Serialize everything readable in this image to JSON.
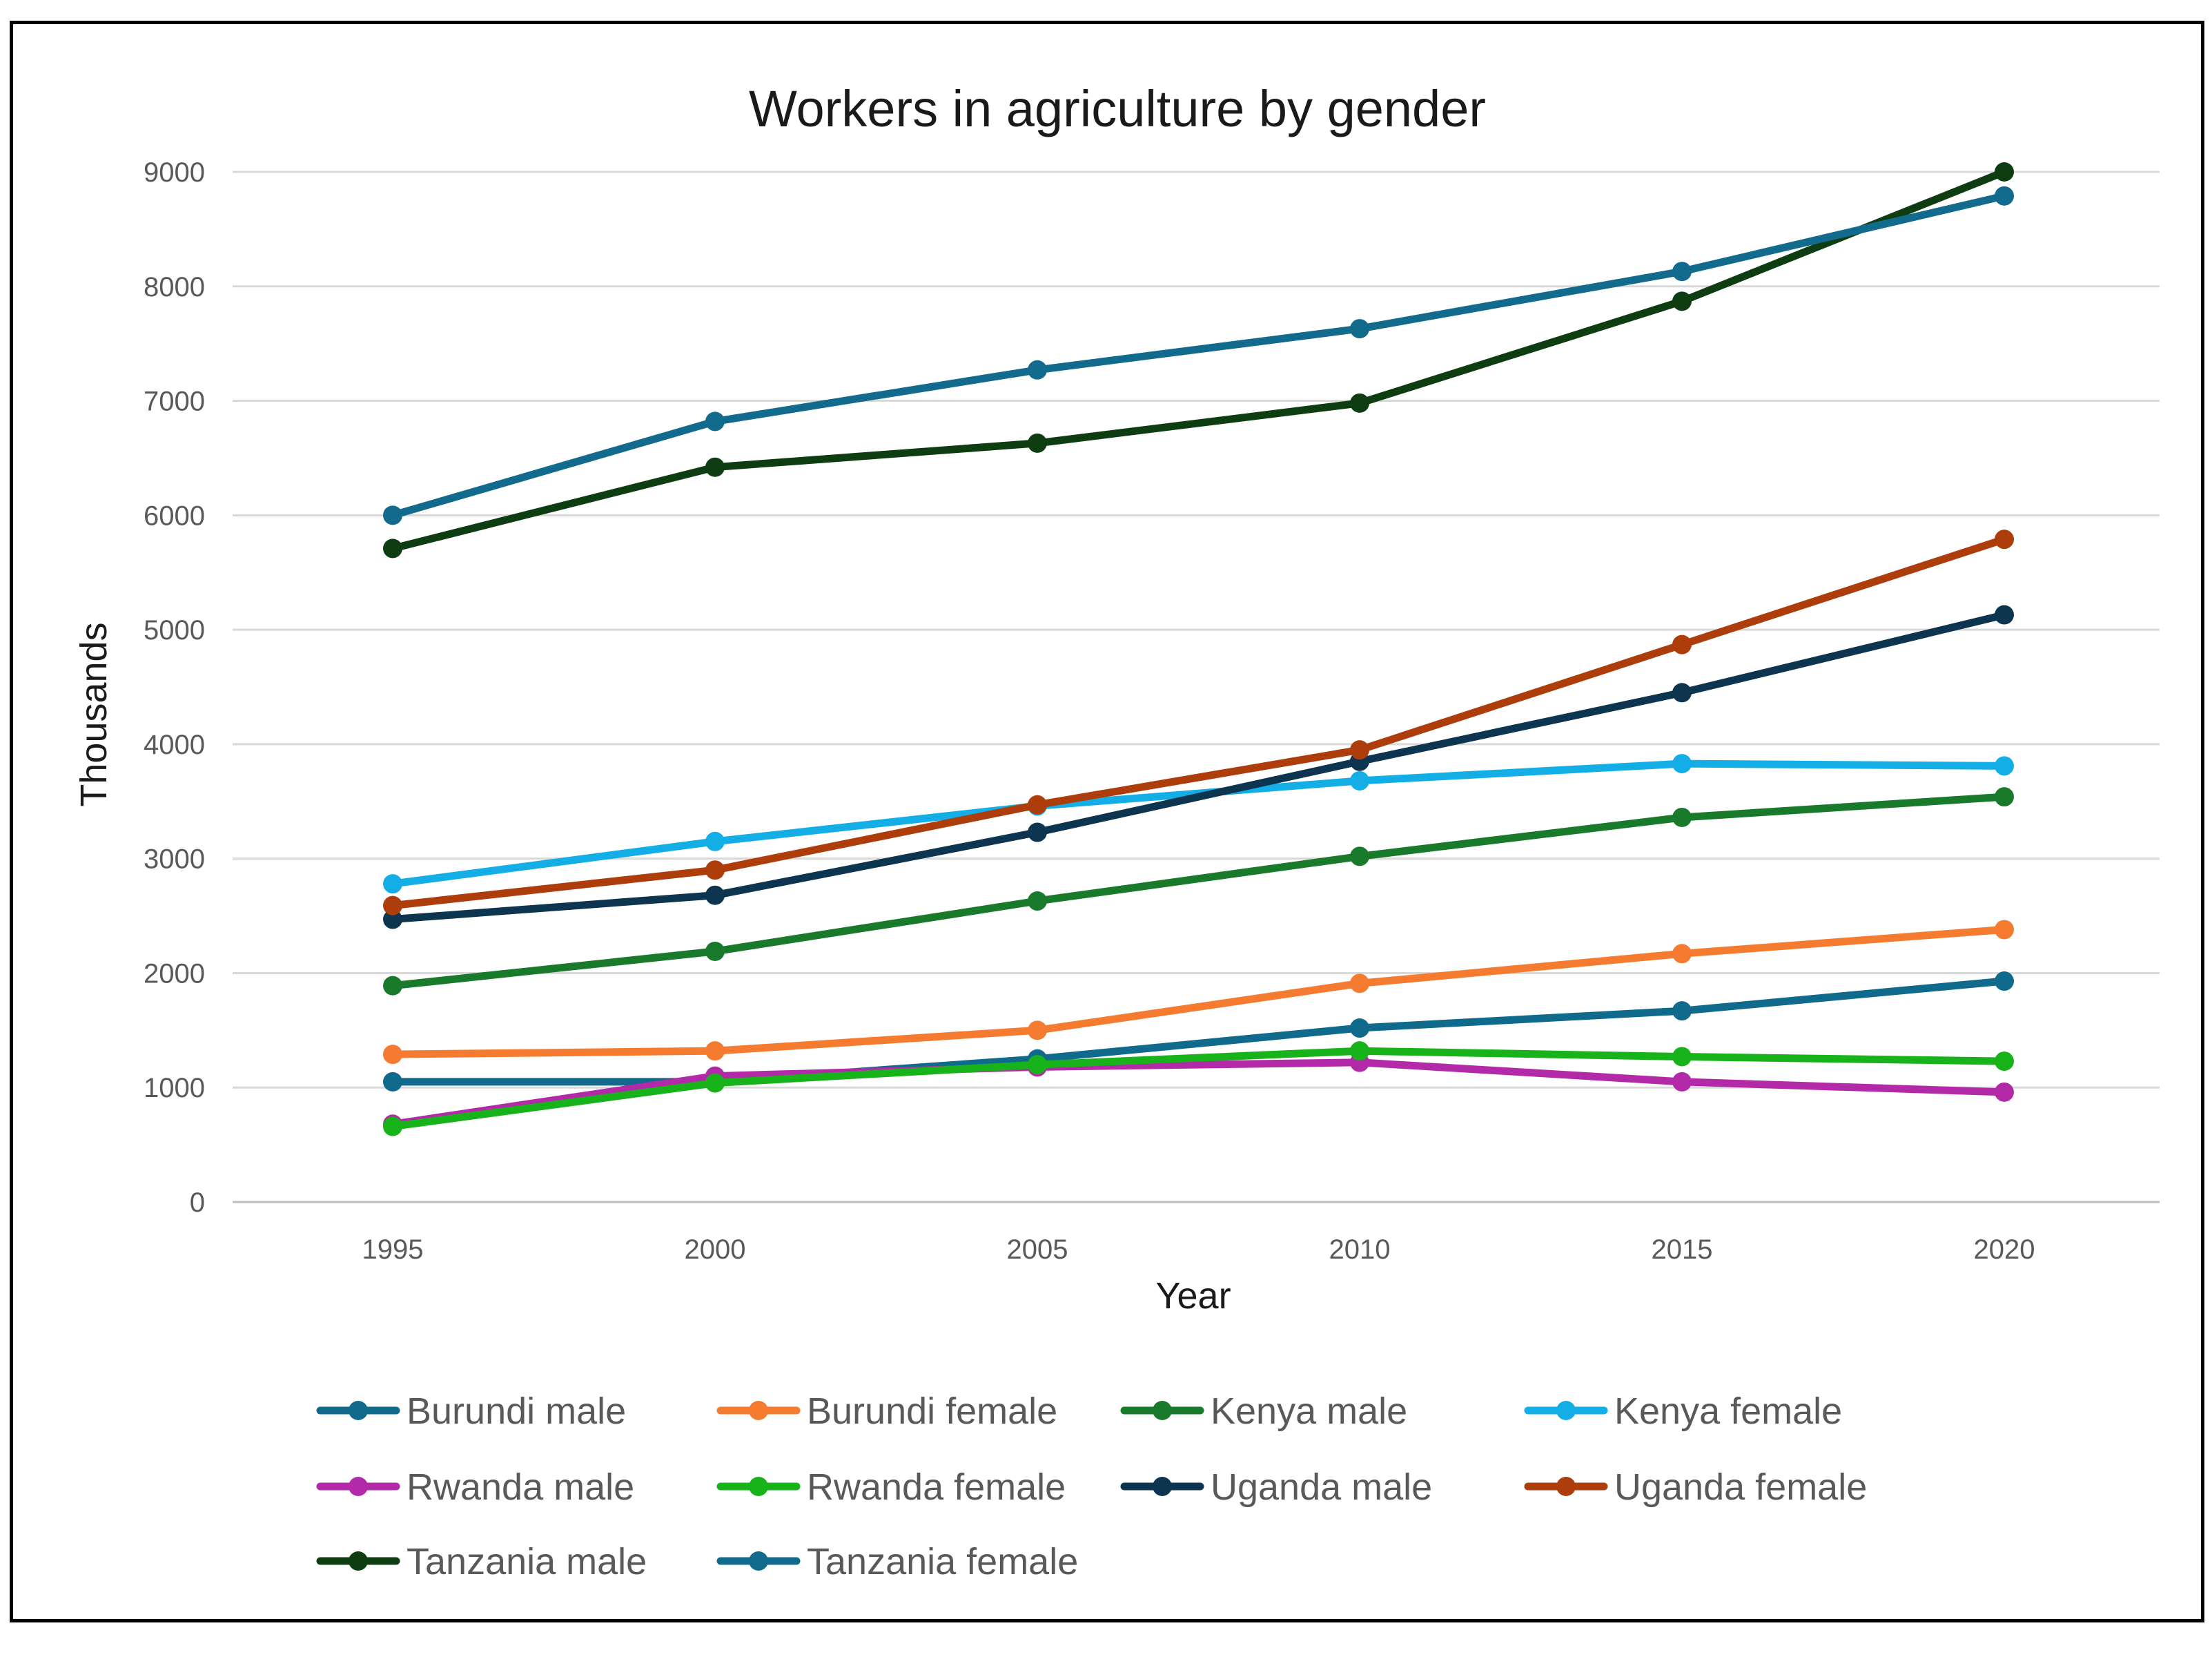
{
  "chart_data": {
    "type": "line",
    "title": "Workers in agriculture by gender",
    "xlabel": "Year",
    "ylabel": "Thousands",
    "x": [
      1995,
      2000,
      2005,
      2010,
      2015,
      2020
    ],
    "x_tick_labels": [
      "1995",
      "2000",
      "2005",
      "2010",
      "2015",
      "2020"
    ],
    "ylim": [
      0,
      9000
    ],
    "y_ticks": [
      0,
      1000,
      2000,
      3000,
      4000,
      5000,
      6000,
      7000,
      8000,
      9000
    ],
    "grid": true,
    "legend_position": "bottom",
    "series": [
      {
        "name": "Burundi male",
        "color": "#0f6a8c",
        "values": [
          1050,
          1050,
          1250,
          1520,
          1670,
          1930
        ]
      },
      {
        "name": "Burundi female",
        "color": "#f47b2f",
        "values": [
          1290,
          1320,
          1500,
          1910,
          2170,
          2380
        ]
      },
      {
        "name": "Kenya male",
        "color": "#1a7a2c",
        "values": [
          1890,
          2190,
          2630,
          3020,
          3360,
          3540
        ]
      },
      {
        "name": "Kenya female",
        "color": "#14aee6",
        "values": [
          2780,
          3150,
          3460,
          3680,
          3830,
          3810
        ]
      },
      {
        "name": "Rwanda male",
        "color": "#b32aa8",
        "values": [
          680,
          1100,
          1180,
          1220,
          1050,
          960
        ]
      },
      {
        "name": "Rwanda female",
        "color": "#18b21a",
        "values": [
          660,
          1040,
          1200,
          1320,
          1270,
          1230
        ]
      },
      {
        "name": "Uganda male",
        "color": "#0d3550",
        "values": [
          2470,
          2680,
          3230,
          3850,
          4450,
          5130
        ]
      },
      {
        "name": "Uganda female",
        "color": "#ad3e0c",
        "values": [
          2590,
          2900,
          3470,
          3950,
          4870,
          5790
        ]
      },
      {
        "name": "Tanzania male",
        "color": "#0d3d10",
        "values": [
          5710,
          6420,
          6630,
          6980,
          7870,
          9000
        ]
      },
      {
        "name": "Tanzania female",
        "color": "#126a8c",
        "values": [
          6000,
          6820,
          7270,
          7630,
          8130,
          8790
        ]
      }
    ]
  }
}
